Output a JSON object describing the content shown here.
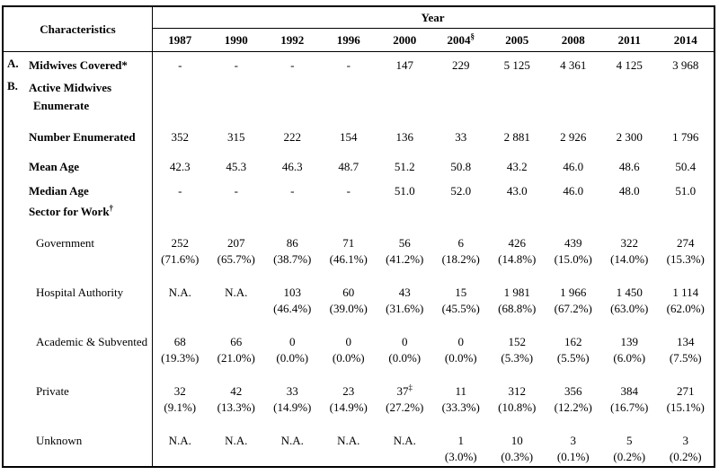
{
  "table": {
    "characteristics_header": "Characteristics",
    "year_header": "Year",
    "years": [
      {
        "label": "1987",
        "sup": ""
      },
      {
        "label": "1990",
        "sup": ""
      },
      {
        "label": "1992",
        "sup": ""
      },
      {
        "label": "1996",
        "sup": ""
      },
      {
        "label": "2000",
        "sup": ""
      },
      {
        "label": "2004",
        "sup": "§"
      },
      {
        "label": "2005",
        "sup": ""
      },
      {
        "label": "2008",
        "sup": ""
      },
      {
        "label": "2011",
        "sup": ""
      },
      {
        "label": "2014",
        "sup": ""
      }
    ],
    "rows": [
      {
        "id": "midwives-covered",
        "marker": "A.",
        "label": "Midwives Covered*",
        "label_sup": "",
        "bold": true,
        "indent": 0,
        "type": "single",
        "values": [
          "-",
          "-",
          "-",
          "-",
          "147",
          "229",
          "5 125",
          "4 361",
          "4 125",
          "3 968"
        ]
      },
      {
        "id": "active-midwives-enumerate",
        "marker": "B.",
        "label": "Active Midwives",
        "label2": "Enumerate",
        "label_sup": "",
        "bold": true,
        "indent": 0,
        "type": "label-only",
        "values": []
      },
      {
        "id": "number-enumerated",
        "marker": "",
        "label": "Number Enumerated",
        "label_sup": "",
        "bold": true,
        "indent": 0,
        "type": "single",
        "values": [
          "352",
          "315",
          "222",
          "154",
          "136",
          "33",
          "2 881",
          "2 926",
          "2 300",
          "1 796"
        ]
      },
      {
        "id": "mean-age",
        "marker": "",
        "label": "Mean Age",
        "label_sup": "",
        "bold": true,
        "indent": 0,
        "type": "single",
        "values": [
          "42.3",
          "45.3",
          "46.3",
          "48.7",
          "51.2",
          "50.8",
          "43.2",
          "46.0",
          "48.6",
          "50.4"
        ]
      },
      {
        "id": "median-age",
        "marker": "",
        "label": "Median Age",
        "label_sup": "",
        "bold": true,
        "indent": 0,
        "type": "single",
        "values": [
          "-",
          "-",
          "-",
          "-",
          "51.0",
          "52.0",
          "43.0",
          "46.0",
          "48.0",
          "51.0"
        ]
      },
      {
        "id": "sector-for-work",
        "marker": "",
        "label": "Sector for Work",
        "label_sup": "†",
        "bold": true,
        "indent": 0,
        "type": "label-only",
        "values": []
      },
      {
        "id": "government",
        "marker": "",
        "label": "Government",
        "label_sup": "",
        "bold": false,
        "indent": 1,
        "type": "double",
        "values": [
          [
            "252",
            "(71.6%)"
          ],
          [
            "207",
            "(65.7%)"
          ],
          [
            "86",
            "(38.7%)"
          ],
          [
            "71",
            "(46.1%)"
          ],
          [
            "56",
            "(41.2%)"
          ],
          [
            "6",
            "(18.2%)"
          ],
          [
            "426",
            "(14.8%)"
          ],
          [
            "439",
            "(15.0%)"
          ],
          [
            "322",
            "(14.0%)"
          ],
          [
            "274",
            "(15.3%)"
          ]
        ]
      },
      {
        "id": "hospital-authority",
        "marker": "",
        "label": "Hospital Authority",
        "label_sup": "",
        "bold": false,
        "indent": 1,
        "type": "double",
        "values": [
          "N.A.",
          "N.A.",
          [
            "103",
            "(46.4%)"
          ],
          [
            "60",
            "(39.0%)"
          ],
          [
            "43",
            "(31.6%)"
          ],
          [
            "15",
            "(45.5%)"
          ],
          [
            "1 981",
            "(68.8%)"
          ],
          [
            "1 966",
            "(67.2%)"
          ],
          [
            "1 450",
            "(63.0%)"
          ],
          [
            "1 114",
            "(62.0%)"
          ]
        ]
      },
      {
        "id": "academic-subvented",
        "marker": "",
        "label": "Academic & Subvented",
        "label_sup": "",
        "bold": false,
        "indent": 1,
        "type": "double",
        "values": [
          [
            "68",
            "(19.3%)"
          ],
          [
            "66",
            "(21.0%)"
          ],
          [
            "0",
            "(0.0%)"
          ],
          [
            "0",
            "(0.0%)"
          ],
          [
            "0",
            "(0.0%)"
          ],
          [
            "0",
            "(0.0%)"
          ],
          [
            "152",
            "(5.3%)"
          ],
          [
            "162",
            "(5.5%)"
          ],
          [
            "139",
            "(6.0%)"
          ],
          [
            "134",
            "(7.5%)"
          ]
        ]
      },
      {
        "id": "private",
        "marker": "",
        "label": "Private",
        "label_sup": "",
        "bold": false,
        "indent": 1,
        "type": "double",
        "values": [
          [
            "32",
            "(9.1%)"
          ],
          [
            "42",
            "(13.3%)"
          ],
          [
            "33",
            "(14.9%)"
          ],
          [
            "23",
            "(14.9%)"
          ],
          [
            "37",
            "(27.2%)",
            "‡"
          ],
          [
            "11",
            "(33.3%)"
          ],
          [
            "312",
            "(10.8%)"
          ],
          [
            "356",
            "(12.2%)"
          ],
          [
            "384",
            "(16.7%)"
          ],
          [
            "271",
            "(15.1%)"
          ]
        ]
      },
      {
        "id": "unknown",
        "marker": "",
        "label": "Unknown",
        "label_sup": "",
        "bold": false,
        "indent": 1,
        "type": "double",
        "values": [
          "N.A.",
          "N.A.",
          "N.A.",
          "N.A.",
          "N.A.",
          [
            "1",
            "(3.0%)"
          ],
          [
            "10",
            "(0.3%)"
          ],
          [
            "3",
            "(0.1%)"
          ],
          [
            "5",
            "(0.2%)"
          ],
          [
            "3",
            "(0.2%)"
          ]
        ]
      }
    ]
  }
}
